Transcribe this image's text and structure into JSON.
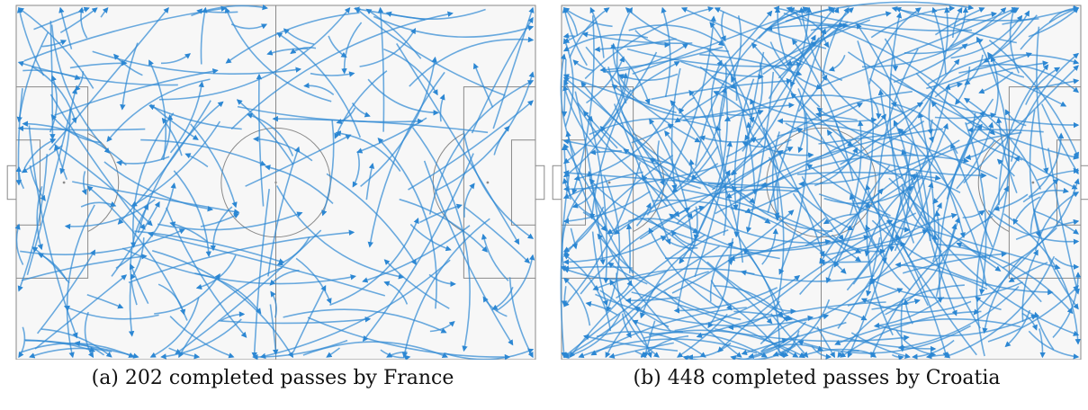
{
  "figure": {
    "panels": [
      {
        "id": "a",
        "caption_label": "(a)",
        "caption_text": "202 completed passes by France",
        "pass_count": 202,
        "team": "France",
        "attack_direction": "left-to-right"
      },
      {
        "id": "b",
        "caption_label": "(b)",
        "caption_text": "448 completed passes by Croatia",
        "pass_count": 448,
        "team": "Croatia",
        "attack_direction": "left-to-right"
      }
    ],
    "colors": {
      "pitch_background": "#f7f7f7",
      "pitch_lines": "#8a8a8a",
      "pass_arrows": "#2c87d3",
      "direction_arrow": "#000000"
    }
  }
}
